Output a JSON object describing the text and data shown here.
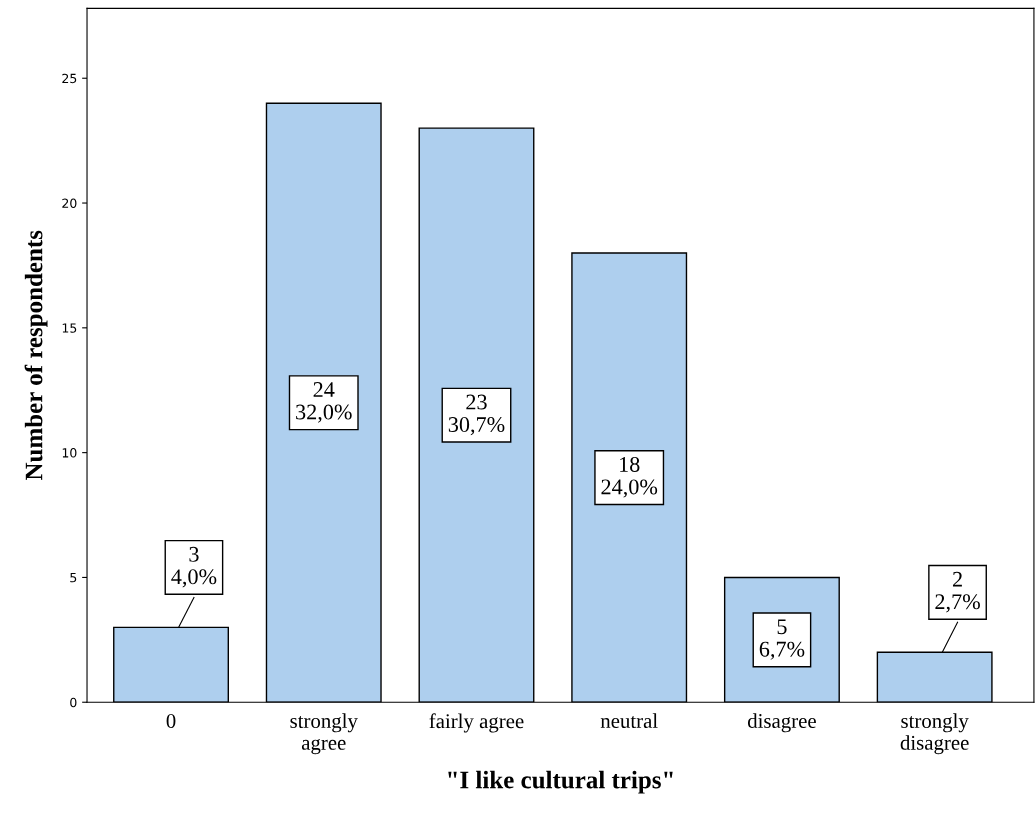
{
  "chart_data": {
    "type": "bar",
    "xlabel": "\"I like cultural trips\"",
    "ylabel": "Number of respondents",
    "categories": [
      "0",
      "strongly\nagree",
      "fairly agree",
      "neutral",
      "disagree",
      "strongly\ndisagree"
    ],
    "values": [
      3,
      24,
      23,
      18,
      5,
      2
    ],
    "color": "#aecfee",
    "value_labels": [
      "3\n4,0%",
      "24\n32,0%",
      "23\n30,7%",
      "18\n24,0%",
      "5\n6,7%",
      "2\n2,7%"
    ],
    "ylim": [
      0,
      27.8
    ],
    "yticks": [
      0,
      5,
      10,
      15,
      20,
      25
    ],
    "grid": false
  }
}
